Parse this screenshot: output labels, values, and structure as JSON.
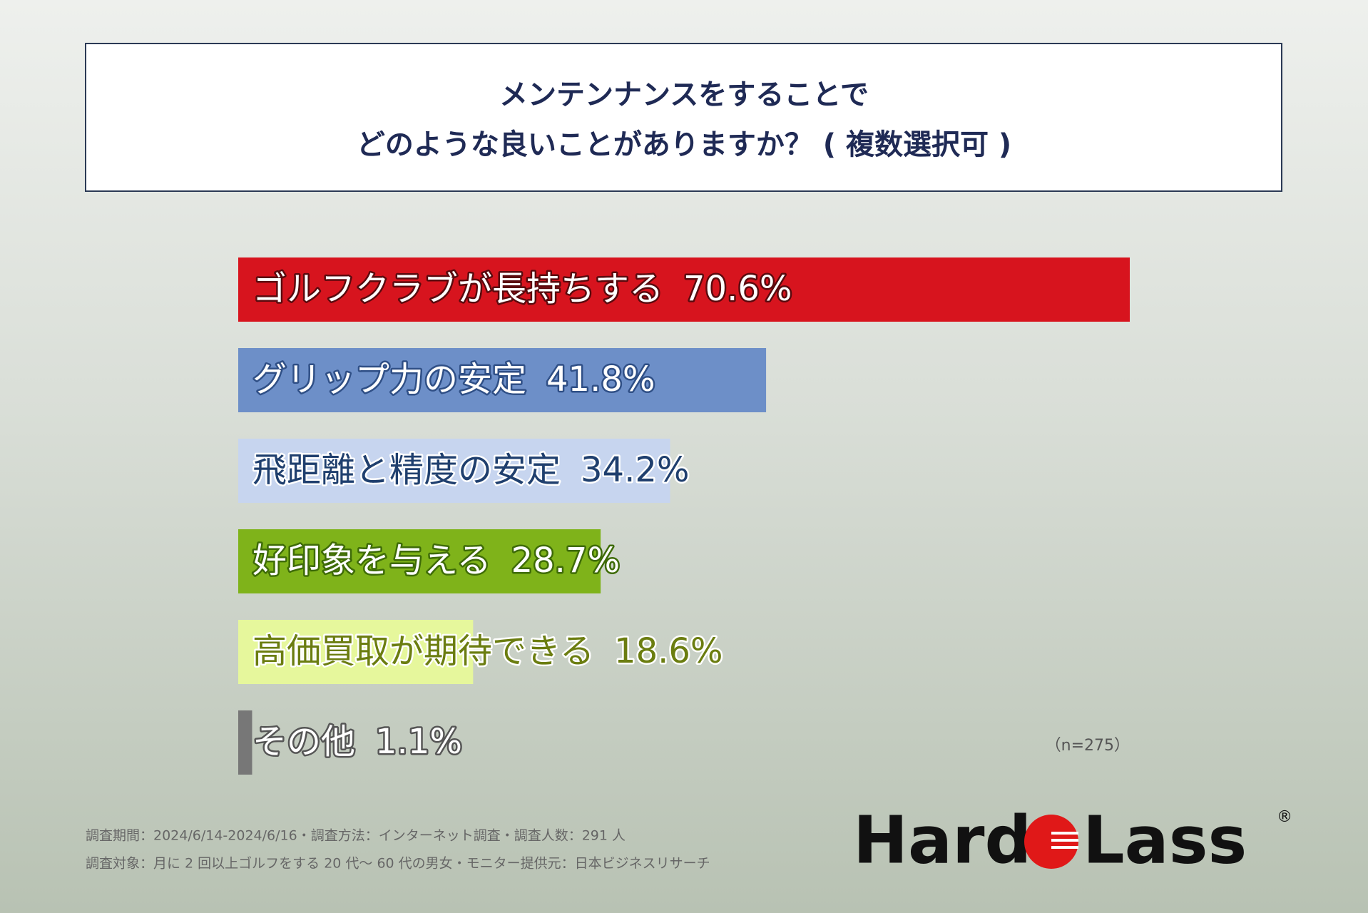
{
  "chart_data": {
    "type": "hbar",
    "title": [
      "メンテンナンスをすることで",
      "どのような良いことがありますか？ ( 複数選択可 )"
    ],
    "categories": [
      "ゴルフクラブが長持ちする",
      "グリップ力の安定",
      "飛距離と精度の安定",
      "好印象を与える",
      "高価買取が期待できる",
      "その他"
    ],
    "values": [
      70.6,
      41.8,
      34.2,
      28.7,
      18.6,
      1.1
    ],
    "value_labels": [
      "70.6%",
      "41.8%",
      "34.2%",
      "28.7%",
      "18.6%",
      "1.1%"
    ],
    "colors": [
      "#d7141e",
      "#6d8fc8",
      "#c7d5ef",
      "#7fb31a",
      "#e6f79c",
      "#777777"
    ],
    "label_colors": [
      "#ffffff",
      "#ffffff",
      "#1f3f6e",
      "#ffffff",
      "#6b7d10",
      "#ffffff"
    ],
    "label_strokes": [
      "#5a0a0e",
      "#2f4f86",
      "#ffffff",
      "#3e6b07",
      "#ffffff",
      "#555555"
    ],
    "note": "（n=275）",
    "footnotes": [
      "調査期間：2024/6/14-2024/6/16・調査方法：インターネット調査・調査人数：291 人",
      "調査対象：月に 2 回以上ゴルフをする 20 代〜 60 代の男女・モニター提供元：日本ビジネスリサーチ"
    ]
  },
  "logo": {
    "left": "Hard",
    "right": "Lass",
    "mark": "®"
  }
}
